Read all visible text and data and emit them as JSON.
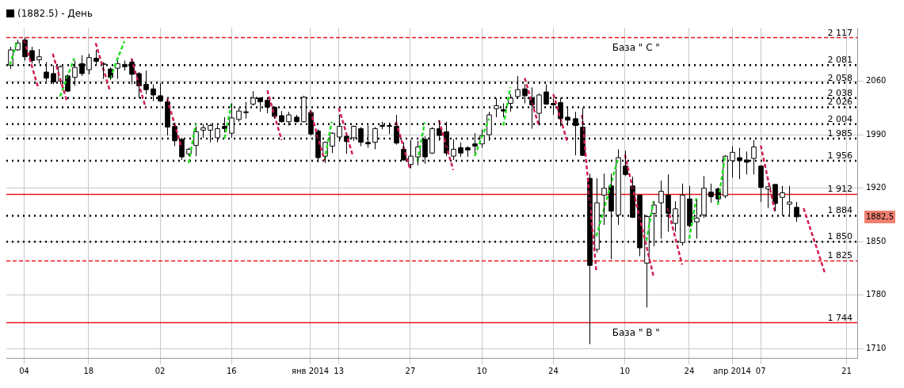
{
  "chart_data": {
    "type": "candlestick",
    "title": "(1882.5) - День",
    "categories": [
      null,
      null,
      "04",
      null,
      null,
      null,
      null,
      null,
      null,
      null,
      null,
      "18",
      null,
      null,
      null,
      null,
      null,
      null,
      null,
      null,
      null,
      "02",
      null,
      null,
      null,
      null,
      null,
      null,
      null,
      null,
      null,
      "16",
      null,
      null,
      null,
      null,
      null,
      null,
      null,
      null,
      null,
      null,
      "янв 2014",
      null,
      null,
      null,
      "13",
      null,
      null,
      null,
      null,
      null,
      null,
      null,
      null,
      null,
      "27",
      null,
      null,
      null,
      null,
      null,
      null,
      null,
      null,
      null,
      "10",
      null,
      null,
      null,
      null,
      null,
      null,
      null,
      null,
      null,
      "24",
      null,
      null,
      null,
      null,
      null,
      null,
      null,
      null,
      null,
      "10",
      null,
      null,
      null,
      null,
      null,
      null,
      null,
      null,
      "24",
      null,
      null,
      null,
      null,
      null,
      "апр 2014",
      null,
      null,
      null,
      "07",
      null,
      null,
      null,
      null,
      null,
      null,
      null,
      null,
      null,
      null,
      null,
      "21",
      null
    ],
    "ohlc": [
      [
        2081,
        2105,
        2076,
        2101
      ],
      [
        2101,
        2114,
        2100,
        2110
      ],
      [
        2114,
        2117,
        2087,
        2092
      ],
      [
        2100,
        2105,
        2083,
        2087
      ],
      [
        2088,
        2102,
        2083,
        2092
      ],
      [
        2072,
        2085,
        2060,
        2064
      ],
      [
        2070,
        2081,
        2056,
        2059
      ],
      [
        2060,
        2081,
        2056,
        2079
      ],
      [
        2067,
        2069,
        2046,
        2047
      ],
      [
        2065,
        2087,
        2054,
        2078
      ],
      [
        2083,
        2094,
        2067,
        2070
      ],
      [
        2075,
        2096,
        2069,
        2091
      ],
      [
        2090,
        2101,
        2081,
        2086
      ],
      [
        2082,
        2085,
        2063,
        2083
      ],
      [
        2076,
        2078,
        2062,
        2065
      ],
      [
        2077,
        2087,
        2063,
        2083
      ],
      [
        2082,
        2087,
        2074,
        2079
      ],
      [
        2085,
        2088,
        2056,
        2069
      ],
      [
        2070,
        2072,
        2038,
        2054
      ],
      [
        2056,
        2074,
        2043,
        2049
      ],
      [
        2050,
        2056,
        2034,
        2042
      ],
      [
        2041,
        2058,
        2033,
        2034
      ],
      [
        2033,
        2036,
        1989,
        2000
      ],
      [
        2001,
        2006,
        1975,
        1982
      ],
      [
        1984,
        1986,
        1957,
        1961
      ],
      [
        1965,
        1973,
        1962,
        1971
      ],
      [
        1976,
        2001,
        1962,
        1994
      ],
      [
        1996,
        2004,
        1986,
        1999
      ],
      [
        1996,
        2004,
        1980,
        2002
      ],
      [
        1986,
        2002,
        1980,
        1998
      ],
      [
        2001,
        2013,
        1993,
        1998
      ],
      [
        1992,
        2031,
        1986,
        2012
      ],
      [
        2010,
        2025,
        2007,
        2021
      ],
      [
        2020,
        2033,
        2011,
        2019
      ],
      [
        2030,
        2047,
        2028,
        2038
      ],
      [
        2038,
        2039,
        2020,
        2033
      ],
      [
        2035,
        2037,
        2018,
        2026
      ],
      [
        2026,
        2027,
        2011,
        2014
      ],
      [
        2015,
        2021,
        2006,
        2007
      ],
      [
        2007,
        2020,
        2002,
        2016
      ],
      [
        2013,
        2016,
        2006,
        2007
      ],
      [
        2007,
        2041,
        2006,
        2039
      ],
      [
        2019,
        2022,
        1989,
        1991
      ],
      [
        1995,
        1997,
        1954,
        1960
      ],
      [
        1962,
        1981,
        1953,
        1980
      ],
      [
        1975,
        1993,
        1966,
        1992
      ],
      [
        1987,
        2016,
        1981,
        2001
      ],
      [
        1988,
        1989,
        1965,
        1981
      ],
      [
        1986,
        2002,
        1982,
        2001
      ],
      [
        1998,
        2000,
        1975,
        1980
      ],
      [
        1980,
        2002,
        1973,
        1978
      ],
      [
        1980,
        2000,
        1971,
        1998
      ],
      [
        2002,
        2007,
        1997,
        2001
      ],
      [
        2002,
        2006,
        1991,
        2001
      ],
      [
        2001,
        2016,
        1977,
        1979
      ],
      [
        1971,
        1980,
        1956,
        1957
      ],
      [
        1951,
        1983,
        1946,
        1962
      ],
      [
        1961,
        1982,
        1950,
        1974
      ],
      [
        1984,
        1988,
        1952,
        1961
      ],
      [
        1966,
        2000,
        1965,
        1998
      ],
      [
        1998,
        2009,
        1982,
        1989
      ],
      [
        1994,
        2007,
        1962,
        1966
      ],
      [
        1962,
        1984,
        1957,
        1971
      ],
      [
        1973,
        1980,
        1961,
        1966
      ],
      [
        1973,
        1975,
        1961,
        1970
      ],
      [
        1978,
        1992,
        1966,
        1975
      ],
      [
        1978,
        1997,
        1973,
        1989
      ],
      [
        1990,
        2020,
        1982,
        2016
      ],
      [
        2024,
        2038,
        2013,
        2028
      ],
      [
        2023,
        2031,
        2013,
        2021
      ],
      [
        2031,
        2043,
        2020,
        2038
      ],
      [
        2040,
        2067,
        2038,
        2049
      ],
      [
        2050,
        2056,
        2031,
        2041
      ],
      [
        2038,
        2052,
        1998,
        2029
      ],
      [
        2018,
        2044,
        2002,
        2042
      ],
      [
        2046,
        2056,
        2029,
        2030
      ],
      [
        2031,
        2038,
        2016,
        2029
      ],
      [
        2032,
        2038,
        2001,
        2011
      ],
      [
        2013,
        2025,
        2002,
        2009
      ],
      [
        2011,
        2020,
        1963,
        2002
      ],
      [
        2000,
        2025,
        1962,
        1963
      ],
      [
        1933,
        1939,
        1716,
        1819
      ],
      [
        1840,
        1933,
        1836,
        1901
      ],
      [
        1911,
        1939,
        1872,
        1920
      ],
      [
        1923,
        1939,
        1827,
        1890
      ],
      [
        1885,
        1971,
        1872,
        1960
      ],
      [
        1949,
        1969,
        1936,
        1938
      ],
      [
        1923,
        1935,
        1881,
        1882
      ],
      [
        1911,
        1911,
        1831,
        1842
      ],
      [
        1822,
        1885,
        1764,
        1883
      ],
      [
        1887,
        1903,
        1844,
        1898
      ],
      [
        1901,
        1930,
        1854,
        1916
      ],
      [
        1911,
        1938,
        1863,
        1887
      ],
      [
        1874,
        1903,
        1863,
        1893
      ],
      [
        1849,
        1926,
        1845,
        1911
      ],
      [
        1906,
        1923,
        1869,
        1871
      ],
      [
        1876,
        1905,
        1854,
        1881
      ],
      [
        1885,
        1936,
        1881,
        1920
      ],
      [
        1915,
        1926,
        1901,
        1909
      ],
      [
        1919,
        1921,
        1902,
        1906
      ],
      [
        1910,
        1963,
        1907,
        1962
      ],
      [
        1956,
        1975,
        1934,
        1967
      ],
      [
        1960,
        1973,
        1932,
        1956
      ],
      [
        1957,
        1968,
        1938,
        1954
      ],
      [
        1959,
        1983,
        1938,
        1974
      ],
      [
        1949,
        1950,
        1902,
        1921
      ],
      [
        1919,
        1923,
        1894,
        1922
      ],
      [
        1925,
        1925,
        1890,
        1900
      ],
      [
        1908,
        1923,
        1884,
        1914
      ],
      [
        1899,
        1923,
        1884,
        1902
      ],
      [
        1895,
        1902,
        1876,
        1882.5
      ],
      null,
      null,
      null,
      null,
      null,
      null,
      null,
      null
    ],
    "series": [
      {
        "type": "line",
        "color": "#d02050",
        "values": [
          null,
          null,
          2114,
          2082,
          2050,
          null,
          2096,
          2064,
          2033,
          null,
          null,
          null,
          2110,
          2078,
          2047,
          null,
          null,
          2090,
          2057,
          2025,
          null,
          null,
          2037,
          2005,
          1973,
          null,
          null,
          null,
          null,
          null,
          null,
          null,
          null,
          null,
          null,
          null,
          2048,
          2015,
          1983,
          null,
          null,
          null,
          2022,
          1989,
          1956,
          null,
          2025,
          1993,
          1961,
          null,
          null,
          null,
          null,
          null,
          2007,
          1975,
          1944,
          null,
          null,
          null,
          2009,
          1976,
          1944,
          null,
          null,
          null,
          null,
          null,
          null,
          null,
          null,
          null,
          2064,
          2032,
          2001,
          null,
          2043,
          2011,
          1979,
          null,
          2016,
          1914,
          1812,
          null,
          null,
          null,
          1964,
          1924,
          1884,
          1845,
          1805,
          null,
          1894,
          1857,
          1820,
          null,
          null,
          null,
          null,
          null,
          null,
          null,
          null,
          null,
          null,
          1976,
          1932,
          1889,
          null,
          null,
          null,
          1894,
          1865,
          1837,
          1808,
          null,
          null,
          null,
          null
        ]
      },
      {
        "type": "line",
        "color": "#22dd22",
        "values": [
          2081,
          2112,
          null,
          null,
          null,
          null,
          null,
          2040,
          2065,
          2090,
          null,
          null,
          null,
          null,
          2063,
          2088,
          2112,
          null,
          null,
          null,
          null,
          null,
          null,
          null,
          null,
          1953,
          2004,
          null,
          null,
          null,
          1985,
          2031,
          null,
          null,
          null,
          null,
          null,
          null,
          null,
          null,
          null,
          null,
          null,
          null,
          1956,
          2007,
          null,
          null,
          null,
          null,
          null,
          null,
          null,
          null,
          null,
          null,
          null,
          1955,
          2006,
          null,
          null,
          null,
          null,
          null,
          null,
          1962,
          1987,
          2011,
          null,
          2002,
          2052,
          null,
          null,
          null,
          null,
          null,
          null,
          null,
          null,
          null,
          null,
          null,
          1857,
          1890,
          1924,
          1957,
          null,
          null,
          null,
          1851,
          1903,
          null,
          null,
          null,
          null,
          1854,
          1907,
          null,
          null,
          1898,
          1962,
          null,
          null,
          null,
          null,
          null,
          null,
          null,
          null,
          null,
          null,
          null,
          null,
          null,
          null,
          null,
          null,
          null,
          null
        ]
      }
    ],
    "line_style": "dashed",
    "marker": "none",
    "ylim": [
      1698,
      2130
    ],
    "yticks": [
      1710,
      1780,
      1850,
      {
        "value": 1882.5,
        "label": "1882,5"
      },
      1920,
      1990,
      2060
    ],
    "grid": true,
    "ref_lines": [
      {
        "axis": "y",
        "value": 2117,
        "label": "2 117",
        "color": "#e8141c",
        "line_style": "dashed"
      },
      {
        "axis": "y",
        "value": 2081,
        "label": "2 081",
        "color": "#000000",
        "line_style": "dotted"
      },
      {
        "axis": "y",
        "value": 2058,
        "label": "2 058",
        "color": "#000000",
        "line_style": "dotted"
      },
      {
        "axis": "y",
        "value": 2038,
        "label": "2 038",
        "color": "#000000",
        "line_style": "dotted"
      },
      {
        "axis": "y",
        "value": 2026,
        "label": "2 026",
        "color": "#000000",
        "line_style": "dotted"
      },
      {
        "axis": "y",
        "value": 2004,
        "label": "2 004",
        "color": "#000000",
        "line_style": "dotted"
      },
      {
        "axis": "y",
        "value": 1985,
        "label": "1 985",
        "color": "#000000",
        "line_style": "dotted"
      },
      {
        "axis": "y",
        "value": 1956,
        "label": "1 956",
        "color": "#000000",
        "line_style": "dotted"
      },
      {
        "axis": "y",
        "value": 1912,
        "label": "1 912",
        "color": "#e8141c",
        "line_style": "solid"
      },
      {
        "axis": "y",
        "value": 1884,
        "label": "1 884",
        "color": "#000000",
        "line_style": "dotted"
      },
      {
        "axis": "y",
        "value": 1850,
        "label": "1 850",
        "color": "#000000",
        "line_style": "dotted"
      },
      {
        "axis": "y",
        "value": 1825,
        "label": "1 825",
        "color": "#e8141c",
        "line_style": "dashed"
      },
      {
        "axis": "y",
        "value": 1744,
        "label": "1 744",
        "color": "#e8141c",
        "line_style": "solid"
      }
    ],
    "annotations": [
      {
        "text": "База \" C \"",
        "y": 2117
      },
      {
        "text": "База \" B \"",
        "y": 1744
      }
    ]
  }
}
